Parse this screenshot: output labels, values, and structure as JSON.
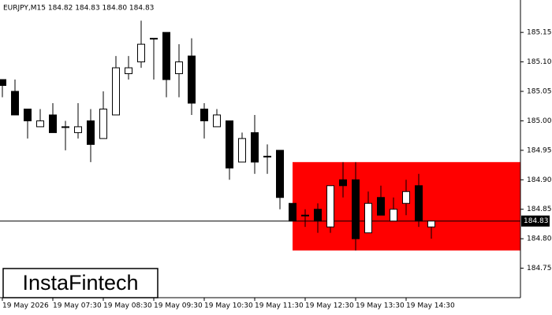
{
  "chart_data": {
    "type": "candlestick",
    "title": "EURJPY,M15  184.82 184.83 184.80 184.83",
    "categories": [
      "19 May 2026",
      null,
      null,
      null,
      "19 May 07:30",
      null,
      null,
      null,
      "19 May 08:30",
      null,
      null,
      null,
      "19 May 09:30",
      null,
      null,
      null,
      "19 May 10:30",
      null,
      null,
      null,
      "19 May 11:30",
      null,
      null,
      null,
      "19 May 12:30",
      null,
      null,
      null,
      "19 May 13:30",
      null,
      null,
      null,
      "19 May 14:30",
      null,
      null
    ],
    "open": [
      185.07,
      185.05,
      185.02,
      184.99,
      185.01,
      184.99,
      184.98,
      185.0,
      184.97,
      185.01,
      185.08,
      185.1,
      185.14,
      185.15,
      185.08,
      185.11,
      185.02,
      184.99,
      185.0,
      184.93,
      184.98,
      184.94,
      184.95,
      184.86,
      184.84,
      184.85,
      184.82,
      184.9,
      184.9,
      184.81,
      184.87,
      184.83,
      184.86,
      184.89,
      184.82
    ],
    "high": [
      185.07,
      185.07,
      185.02,
      185.02,
      185.03,
      185.0,
      185.03,
      185.02,
      185.05,
      185.11,
      185.11,
      185.17,
      185.14,
      185.15,
      185.13,
      185.14,
      185.03,
      185.02,
      185.0,
      184.98,
      185.01,
      184.96,
      184.95,
      184.86,
      184.85,
      184.86,
      184.89,
      184.93,
      184.93,
      184.88,
      184.89,
      184.87,
      184.9,
      184.91,
      184.83
    ],
    "low": [
      185.04,
      185.01,
      184.97,
      184.99,
      184.98,
      184.95,
      184.97,
      184.93,
      184.97,
      185.01,
      185.07,
      185.09,
      185.07,
      185.04,
      185.04,
      185.01,
      184.97,
      184.99,
      184.9,
      184.93,
      184.91,
      184.91,
      184.85,
      184.83,
      184.82,
      184.81,
      184.81,
      184.87,
      184.78,
      184.81,
      184.84,
      184.83,
      184.84,
      184.82,
      184.8
    ],
    "close": [
      185.06,
      185.01,
      185.0,
      185.0,
      184.98,
      184.99,
      184.99,
      184.96,
      185.02,
      185.09,
      185.09,
      185.13,
      185.14,
      185.07,
      185.1,
      185.03,
      185.0,
      185.01,
      184.92,
      184.97,
      184.93,
      184.94,
      184.87,
      184.83,
      184.84,
      184.83,
      184.89,
      184.89,
      184.8,
      184.86,
      184.84,
      184.85,
      184.88,
      184.83,
      184.83
    ],
    "up_color": "#ffffff",
    "down_color": "#000000",
    "ylim": [
      184.7,
      185.205
    ],
    "yticks": [
      {
        "value": 184.75,
        "label": "184.75"
      },
      {
        "value": 184.8,
        "label": "184.80"
      },
      {
        "value": 184.85,
        "label": "184.85"
      },
      {
        "value": 184.9,
        "label": "184.90"
      },
      {
        "value": 184.95,
        "label": "184.95"
      },
      {
        "value": 185.0,
        "label": "185.00"
      },
      {
        "value": 185.05,
        "label": "185.05"
      },
      {
        "value": 185.1,
        "label": "185.10"
      },
      {
        "value": 185.15,
        "label": "185.15"
      }
    ],
    "last_price": {
      "value": 184.83,
      "label": "184.83"
    },
    "zone": {
      "low": 184.78,
      "high": 184.93,
      "start": 23,
      "color": "#ff0000"
    }
  },
  "logo": "InstaFintech"
}
